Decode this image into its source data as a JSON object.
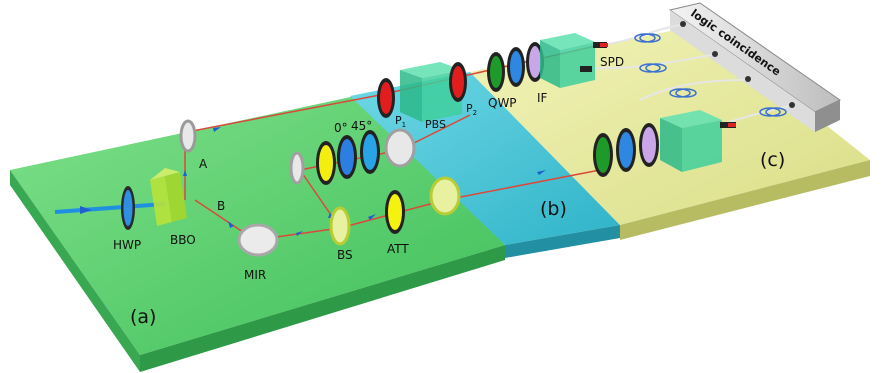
{
  "labels": {
    "hwp": "HWP",
    "bbo": "BBO",
    "a": "A",
    "b": "B",
    "mir": "MIR",
    "bs": "BS",
    "att": "ATT",
    "angle_0": "0°",
    "angle_45": "45°",
    "p1_main": "P",
    "p1_sub": "1",
    "pbs": "PBS",
    "p2_main": "P",
    "p2_sub": "2",
    "qwp": "QWP",
    "if": "IF",
    "spd": "SPD",
    "logic": "logic coincidence"
  },
  "panels": {
    "a": "(a)",
    "b": "(b)",
    "c": "(c)"
  },
  "colors": {
    "panel_a": "#4fd36a",
    "panel_b": "#3bc4d6",
    "panel_c": "#e7ea9c",
    "beam": "#e23a2a",
    "pump": "#1f8fe0",
    "arrow": "#1f5fd0"
  }
}
